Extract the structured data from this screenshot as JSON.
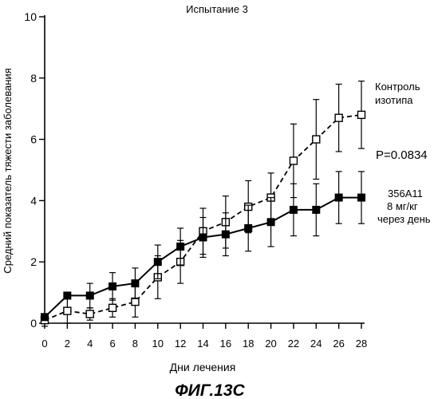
{
  "chart_data": {
    "type": "line",
    "title": "Испытание 3",
    "xlabel": "Дни лечения",
    "ylabel": "Средний показатель тяжести заболевания",
    "figure_label": "ФИГ.13С",
    "xlim": [
      0,
      28
    ],
    "ylim": [
      0,
      10
    ],
    "x_ticks": [
      0,
      2,
      4,
      6,
      8,
      10,
      12,
      14,
      16,
      18,
      20,
      22,
      24,
      26,
      28
    ],
    "y_ticks": [
      0,
      2,
      4,
      6,
      8,
      10
    ],
    "grid": false,
    "x": [
      0,
      2,
      4,
      6,
      8,
      10,
      12,
      14,
      16,
      18,
      20,
      22,
      24,
      26,
      28
    ],
    "series": [
      {
        "name_lines": [
          "Контроль",
          "изотипа"
        ],
        "marker": "open-square",
        "line": "dashed",
        "values": [
          0.1,
          0.4,
          0.3,
          0.5,
          0.7,
          1.5,
          2.0,
          3.0,
          3.3,
          3.8,
          4.1,
          5.3,
          6.0,
          6.7,
          6.8
        ],
        "errors": [
          0.2,
          0.4,
          0.2,
          0.3,
          0.5,
          0.7,
          0.7,
          0.75,
          0.85,
          0.85,
          0.8,
          1.2,
          1.3,
          1.1,
          1.1
        ]
      },
      {
        "name_lines": [
          "356A11",
          "8 мг/кг",
          "через день"
        ],
        "marker": "filled-square",
        "line": "solid",
        "values": [
          0.2,
          0.9,
          0.9,
          1.2,
          1.3,
          2.0,
          2.5,
          2.8,
          2.9,
          3.1,
          3.3,
          3.7,
          3.7,
          4.1,
          4.1
        ]
      }
    ],
    "annotations": [
      "P=0.0834"
    ]
  }
}
